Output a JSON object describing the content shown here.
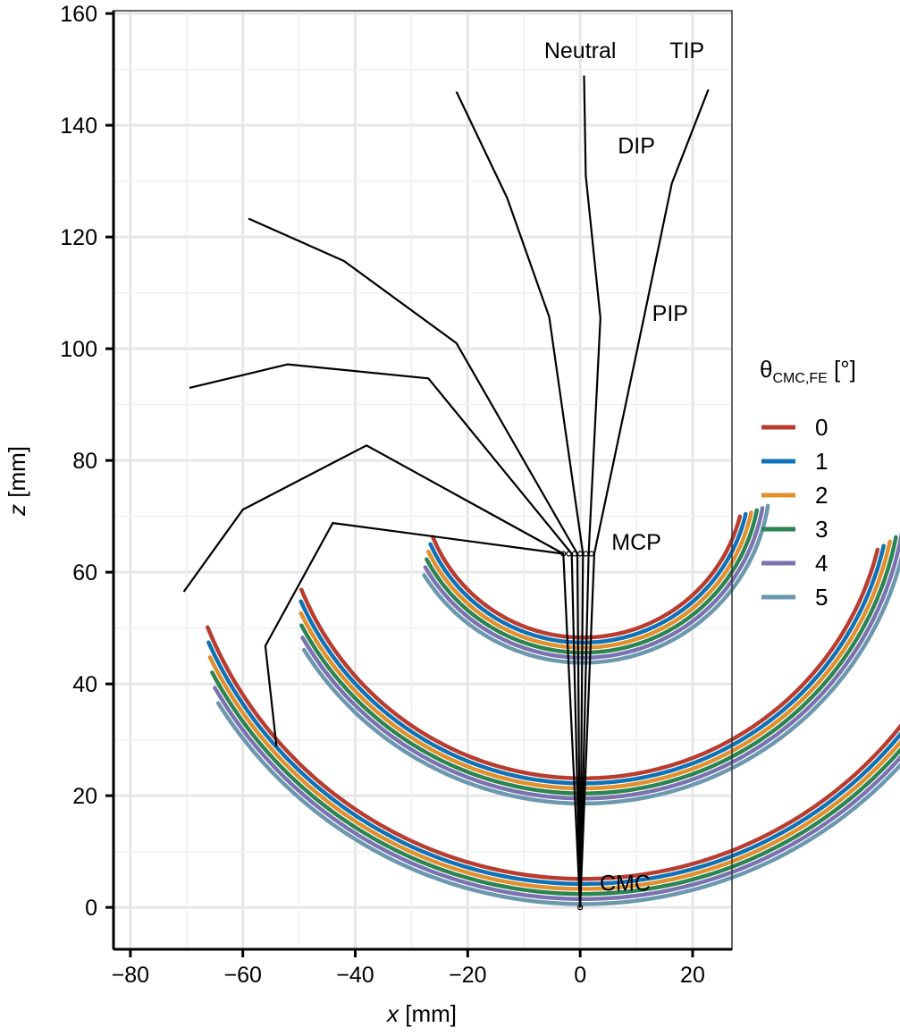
{
  "chart_data": {
    "type": "line",
    "xlabel_var": "x",
    "xlabel_unit": "[mm]",
    "ylabel_var": "z",
    "ylabel_unit": "[mm]",
    "xlim": [
      -83,
      27
    ],
    "ylim": [
      -7.5,
      160.5
    ],
    "x_ticks": [
      -80,
      -60,
      -40,
      -20,
      0,
      20
    ],
    "x_tick_labels": [
      "−80",
      "−60",
      "−40",
      "−20",
      "0",
      "20"
    ],
    "y_ticks": [
      0,
      20,
      40,
      60,
      80,
      100,
      120,
      140,
      160
    ],
    "y_tick_labels": [
      "0",
      "20",
      "40",
      "60",
      "80",
      "100",
      "120",
      "140",
      "160"
    ],
    "grid": true,
    "legend": {
      "title_symbol": "θ",
      "title_subscript": "CMC,FE",
      "title_unit": "[°]",
      "placement": "right",
      "entries": [
        "0",
        "1",
        "2",
        "3",
        "4",
        "5"
      ]
    },
    "colors": [
      "#b83d2f",
      "#0f72b5",
      "#e0902e",
      "#2b8452",
      "#7b73b0",
      "#6b98ae"
    ],
    "series": [
      {
        "name": "0",
        "center": [
          0.5,
          77.1
        ],
        "radii": [
          28.8,
          54,
          72
        ],
        "arc_start_deg": 202,
        "tip_angle_deg": -14
      },
      {
        "name": "1",
        "center": [
          0.5,
          77.1
        ],
        "radii": [
          28.8,
          54,
          72
        ],
        "arc_start_deg": 204,
        "tip_angle_deg": -13
      },
      {
        "name": "2",
        "center": [
          0.5,
          77.1
        ],
        "radii": [
          28.8,
          54,
          72
        ],
        "arc_start_deg": 206,
        "tip_angle_deg": -12
      },
      {
        "name": "3",
        "center": [
          0.5,
          77.1
        ],
        "radii": [
          28.8,
          54,
          72
        ],
        "arc_start_deg": 208,
        "tip_angle_deg": -11
      },
      {
        "name": "4",
        "center": [
          0.5,
          77.1
        ],
        "radii": [
          28.8,
          54,
          72
        ],
        "arc_start_deg": 210,
        "tip_angle_deg": -10
      },
      {
        "name": "5",
        "center": [
          0.5,
          77.1
        ],
        "radii": [
          28.8,
          54,
          72
        ],
        "arc_start_deg": 212,
        "tip_angle_deg": -9
      }
    ],
    "skeletons": [
      {
        "points": [
          [
            0,
            0
          ],
          [
            2.5,
            63.3
          ],
          [
            11.2,
            104.9
          ],
          [
            16.3,
            129.6
          ],
          [
            22.8,
            146.4
          ]
        ]
      },
      {
        "points": [
          [
            0,
            0
          ],
          [
            1.5,
            63.3
          ],
          [
            3.6,
            105.5
          ],
          [
            1.0,
            131.0
          ],
          [
            0.7,
            148.9
          ]
        ]
      },
      {
        "points": [
          [
            0,
            0
          ],
          [
            0.5,
            63.3
          ],
          [
            -5.5,
            105.7
          ],
          [
            -13.0,
            127.0
          ],
          [
            -22.0,
            146.0
          ]
        ]
      },
      {
        "points": [
          [
            0,
            0
          ],
          [
            -0.5,
            63.3
          ],
          [
            -22.0,
            101.0
          ],
          [
            -42.0,
            115.7
          ],
          [
            -59.0,
            123.3
          ]
        ]
      },
      {
        "points": [
          [
            0,
            0
          ],
          [
            -1.5,
            63.3
          ],
          [
            -27.0,
            94.7
          ],
          [
            -52.0,
            97.2
          ],
          [
            -69.5,
            93.0
          ]
        ]
      },
      {
        "points": [
          [
            0,
            0
          ],
          [
            -3.0,
            63.3
          ],
          [
            -38.0,
            82.7
          ],
          [
            -60.0,
            71.2
          ],
          [
            -70.5,
            56.5
          ]
        ]
      },
      {
        "points": [
          [
            -3.0,
            63.3
          ],
          [
            -44.0,
            68.8
          ],
          [
            -56.0,
            46.8
          ],
          [
            -54.0,
            28.8
          ]
        ]
      }
    ],
    "annotations": [
      {
        "text": "Neutral",
        "x": 0,
        "y": 152
      },
      {
        "text": "TIP",
        "x": 19,
        "y": 152
      },
      {
        "text": "DIP",
        "x": 10,
        "y": 135
      },
      {
        "text": "PIP",
        "x": 16,
        "y": 105
      },
      {
        "text": "MCP",
        "x": 10,
        "y": 64
      },
      {
        "text": "CMC",
        "x": 8,
        "y": 3
      }
    ]
  }
}
